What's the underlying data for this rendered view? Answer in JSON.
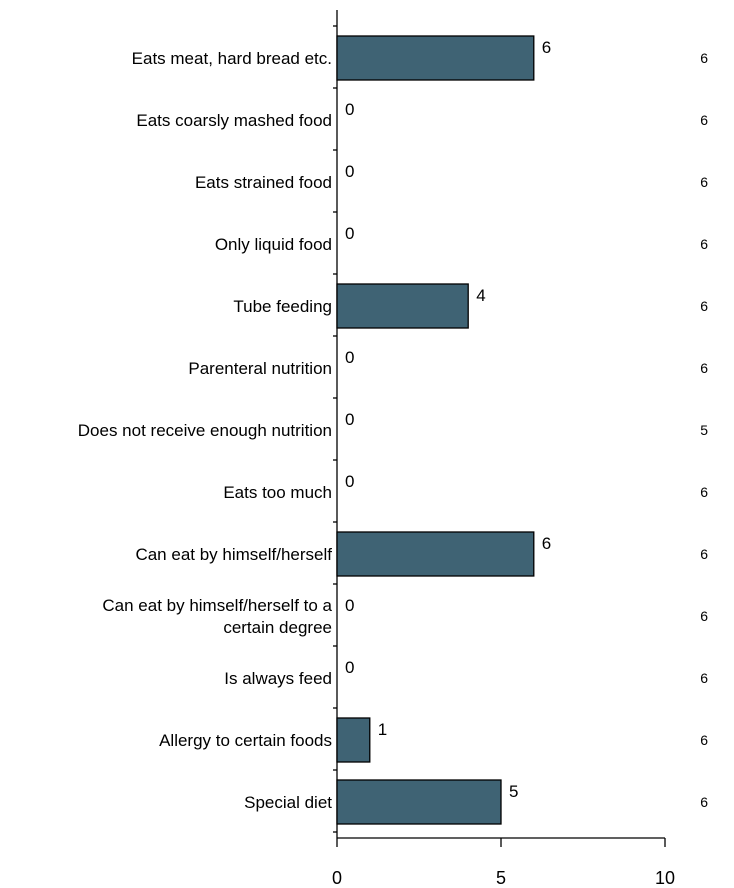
{
  "chart_data": {
    "type": "bar",
    "orientation": "horizontal",
    "categories": [
      "Eats meat, hard bread etc.",
      "Eats coarsly mashed food",
      "Eats strained food",
      "Only liquid food",
      "Tube feeding",
      "Parenteral nutrition",
      "Does not receive enough nutrition",
      "Eats too much",
      "Can eat by himself/herself",
      [
        "Can eat by himself/herself to a",
        "certain degree"
      ],
      "Is always feed",
      "Allergy to certain foods",
      "Special diet"
    ],
    "values": [
      6,
      0,
      0,
      0,
      4,
      0,
      0,
      0,
      6,
      0,
      0,
      1,
      5
    ],
    "n_values": [
      6,
      6,
      6,
      6,
      6,
      6,
      5,
      6,
      6,
      6,
      6,
      6,
      6
    ],
    "xlim": [
      0,
      10
    ],
    "xticks": [
      0,
      5,
      10
    ],
    "title": "",
    "xlabel": "",
    "ylabel": "",
    "bar_color": "#3f6374",
    "grid": false,
    "legend": "none"
  }
}
